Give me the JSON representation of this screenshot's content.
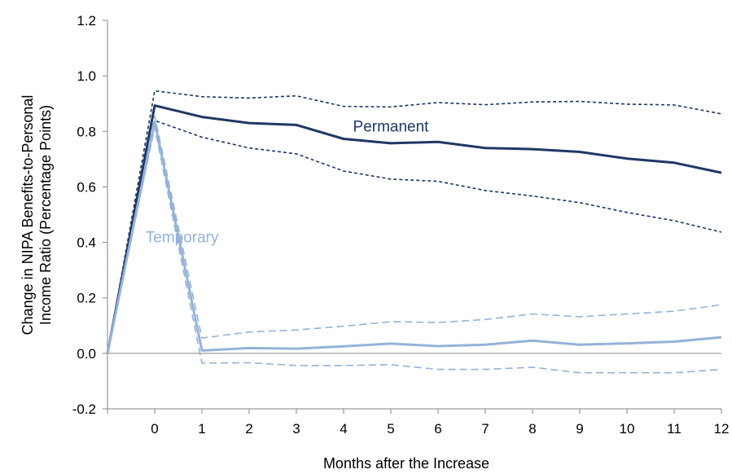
{
  "chart_data": {
    "type": "line",
    "title": "",
    "xlabel": "Months after the Increase",
    "ylabel_line1": "Change in NIPA Benefits-to-Personal",
    "ylabel_line2": "Income Ratio (Percentage Points)",
    "x": [
      -1,
      0,
      1,
      2,
      3,
      4,
      5,
      6,
      7,
      8,
      9,
      10,
      11,
      12
    ],
    "x_tick_labels": [
      "0",
      "1",
      "2",
      "3",
      "4",
      "5",
      "6",
      "7",
      "8",
      "9",
      "10",
      "11",
      "12"
    ],
    "y_ticks": [
      -0.2,
      0.0,
      0.2,
      0.4,
      0.6,
      0.8,
      1.0,
      1.2
    ],
    "y_tick_labels": [
      "-0.2",
      "0.0",
      "0.2",
      "0.4",
      "0.6",
      "0.8",
      "1.0",
      "1.2"
    ],
    "xlim": [
      -1,
      12
    ],
    "ylim": [
      -0.2,
      1.2
    ],
    "grid": false,
    "series": [
      {
        "name": "Permanent",
        "label": "Permanent",
        "color": "#1f3864",
        "style": "solid",
        "values": [
          0.0,
          0.893,
          0.852,
          0.83,
          0.823,
          0.773,
          0.757,
          0.762,
          0.74,
          0.736,
          0.726,
          0.702,
          0.687,
          0.651
        ]
      },
      {
        "name": "Permanent upper band",
        "color": "#1f3864",
        "style": "dotted",
        "values": [
          0.0,
          0.946,
          0.925,
          0.92,
          0.928,
          0.89,
          0.888,
          0.904,
          0.896,
          0.906,
          0.908,
          0.898,
          0.895,
          0.863
        ]
      },
      {
        "name": "Permanent lower band",
        "color": "#1f3864",
        "style": "dotted",
        "values": [
          0.0,
          0.839,
          0.779,
          0.74,
          0.719,
          0.657,
          0.628,
          0.62,
          0.587,
          0.567,
          0.543,
          0.508,
          0.478,
          0.437
        ]
      },
      {
        "name": "Temporary",
        "label": "Temporary",
        "color": "#95b3d7",
        "style": "solid",
        "values": [
          0.0,
          0.835,
          0.01,
          0.019,
          0.017,
          0.025,
          0.035,
          0.026,
          0.031,
          0.046,
          0.031,
          0.036,
          0.042,
          0.058
        ]
      },
      {
        "name": "Temporary upper band",
        "color": "#95b3d7",
        "style": "dashed",
        "values": [
          0.0,
          0.855,
          0.055,
          0.077,
          0.084,
          0.098,
          0.114,
          0.111,
          0.122,
          0.142,
          0.132,
          0.142,
          0.152,
          0.175
        ]
      },
      {
        "name": "Temporary lower band",
        "color": "#95b3d7",
        "style": "dashed",
        "values": [
          0.0,
          0.815,
          -0.035,
          -0.034,
          -0.044,
          -0.044,
          -0.041,
          -0.058,
          -0.058,
          -0.05,
          -0.07,
          -0.07,
          -0.07,
          -0.058
        ]
      }
    ],
    "annotations": [
      {
        "text": "Permanent",
        "color": "#1f3864",
        "x": 5.0,
        "y": 0.8
      },
      {
        "text": "Temporary",
        "color": "#95b3d7",
        "x": 0.58,
        "y": 0.4
      }
    ]
  }
}
